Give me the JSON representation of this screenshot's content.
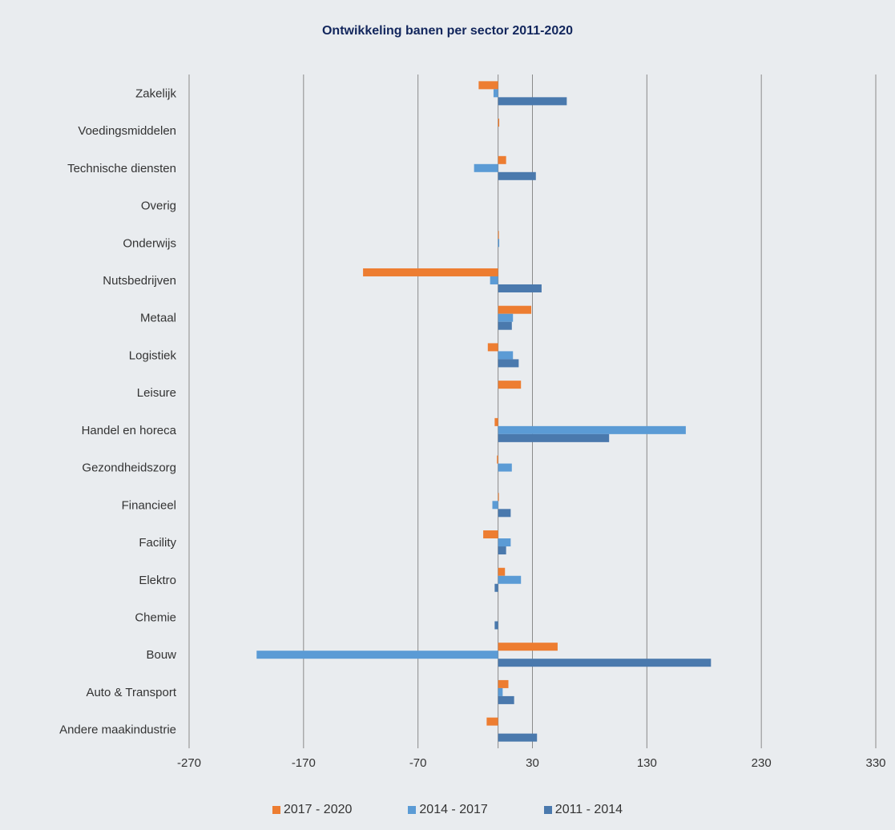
{
  "chart_data": {
    "type": "bar",
    "orientation": "horizontal",
    "title": "Ontwikkeling banen per sector 2011-2020",
    "xlabel": "",
    "ylabel": "",
    "xlim": [
      -270,
      330
    ],
    "xticks": [
      "-270",
      "-170",
      "-70",
      "30",
      "130",
      "230",
      "330"
    ],
    "grid": true,
    "legend_position": "bottom",
    "categories": [
      "Zakelijk",
      "Voedingsmiddelen",
      "Technische diensten",
      "Overig",
      "Onderwijs",
      "Nutsbedrijven",
      "Metaal",
      "Logistiek",
      "Leisure",
      "Handel en horeca",
      "Gezondheidszorg",
      "Financieel",
      "Facility",
      "Elektro",
      "Chemie",
      "Bouw",
      "Auto & Transport",
      "Andere maakindustrie"
    ],
    "series": [
      {
        "name": "2017 - 2020",
        "color": "#ed7d31",
        "values": [
          -17,
          1,
          7,
          0,
          0.5,
          -118,
          29,
          -9,
          20,
          -3,
          -1,
          0.5,
          -13,
          6,
          0,
          52,
          9,
          -10
        ]
      },
      {
        "name": "2014 - 2017",
        "color": "#5b9bd5",
        "values": [
          -4,
          0,
          -21,
          0,
          1,
          -7,
          13,
          13,
          0,
          164,
          12,
          -5,
          11,
          20,
          0,
          -211,
          4,
          0
        ]
      },
      {
        "name": "2011 - 2014",
        "color": "#4a79ad",
        "values": [
          60,
          0,
          33,
          0,
          0,
          38,
          12,
          18,
          0,
          97,
          0,
          11,
          7,
          -3,
          -3,
          186,
          14,
          34
        ]
      }
    ]
  }
}
